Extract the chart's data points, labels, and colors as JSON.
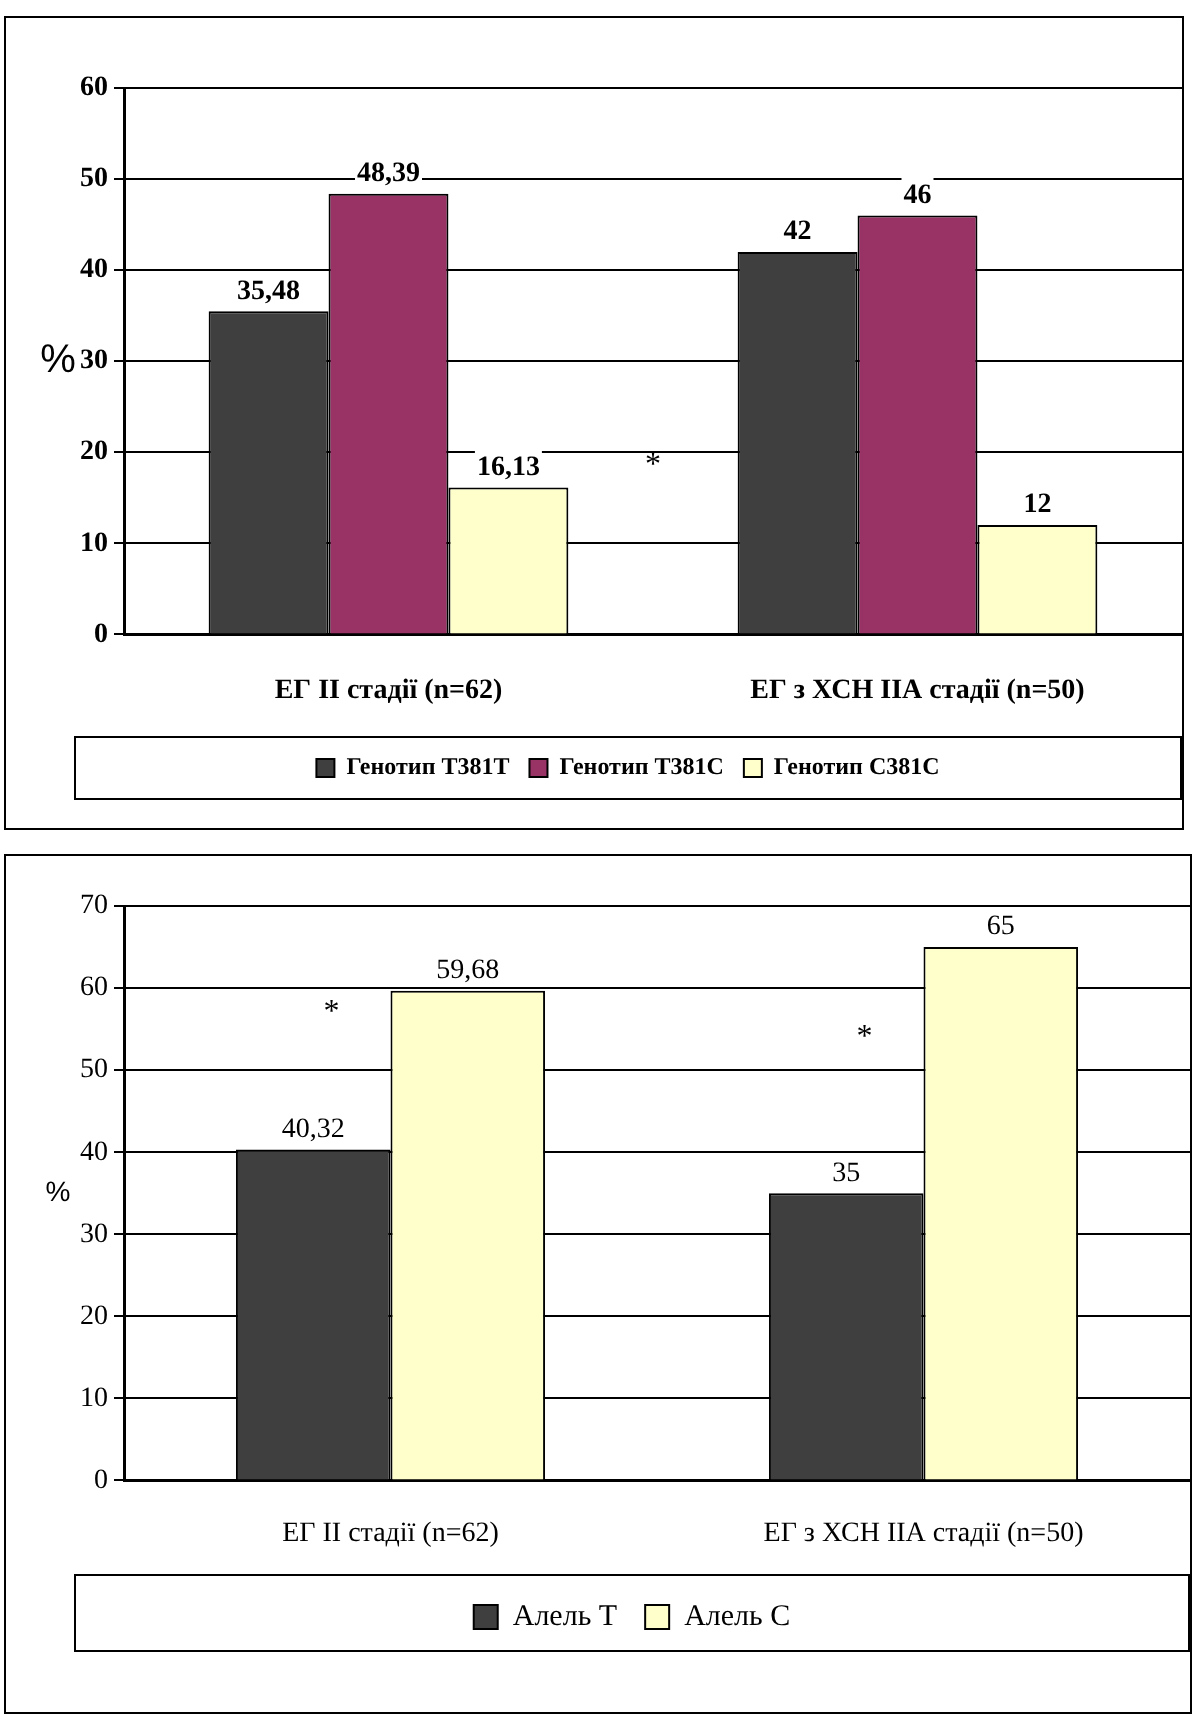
{
  "chart_data": [
    {
      "type": "bar",
      "ylabel": "%",
      "categories": [
        "ЕГ ІІ стадії (n=62)",
        "ЕГ з ХСН ІІА стадії (n=50)"
      ],
      "series": [
        {
          "name": "Генотип T381T",
          "color": "#3f3f3f",
          "values": [
            35.48,
            42
          ],
          "value_labels": [
            "35,48",
            "42"
          ]
        },
        {
          "name": "Генотип T381C",
          "color": "#993366",
          "values": [
            48.39,
            46
          ],
          "value_labels": [
            "48,39",
            "46"
          ]
        },
        {
          "name": "Генотип C381C",
          "color": "#ffffcc",
          "values": [
            16.13,
            12
          ],
          "value_labels": [
            "16,13",
            "12"
          ]
        }
      ],
      "ylim": [
        0,
        60
      ],
      "yticks": [
        0,
        10,
        20,
        30,
        40,
        50,
        60
      ],
      "grid": "y",
      "legend": "bottom",
      "annotations": [
        "*"
      ]
    },
    {
      "type": "bar",
      "ylabel": "%",
      "categories": [
        "ЕГ ІІ стадії (n=62)",
        "ЕГ з ХСН ІІА стадії (n=50)"
      ],
      "series": [
        {
          "name": "Алель Т",
          "color": "#3f3f3f",
          "values": [
            40.32,
            35
          ],
          "value_labels": [
            "40,32",
            "35"
          ]
        },
        {
          "name": "Алель С",
          "color": "#ffffcc",
          "values": [
            59.68,
            65
          ],
          "value_labels": [
            "59,68",
            "65"
          ]
        }
      ],
      "ylim": [
        0,
        70
      ],
      "yticks": [
        0,
        10,
        20,
        30,
        40,
        50,
        60,
        70
      ],
      "grid": "y",
      "legend": "bottom",
      "annotations": [
        {
          "text": "*",
          "x": "ЕГ ІІ стадії (n=62)",
          "y": 57
        },
        {
          "text": "*",
          "x": "ЕГ з ХСН ІІА стадії (n=50)",
          "y": 54
        }
      ]
    }
  ]
}
